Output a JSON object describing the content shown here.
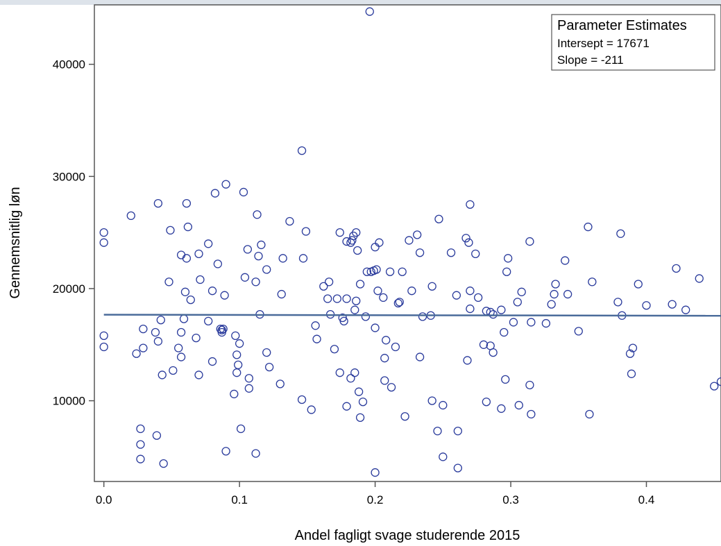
{
  "chart_data": {
    "type": "scatter",
    "title": "",
    "xlabel": "Andel fagligt svage studerende 2015",
    "ylabel": "Gennemsnitlig løn",
    "xlim": [
      -0.007,
      0.455
    ],
    "ylim": [
      2800,
      45300
    ],
    "xticks": [
      0.0,
      0.1,
      0.2,
      0.3,
      0.4
    ],
    "xtick_labels": [
      "0.0",
      "0.1",
      "0.2",
      "0.3",
      "0.4"
    ],
    "yticks": [
      10000,
      20000,
      30000,
      40000
    ],
    "ytick_labels": [
      "10000",
      "20000",
      "30000",
      "40000"
    ],
    "grid": false,
    "marker_color": "#2a3b9c",
    "line_color": "#4a6b9a",
    "legend": {
      "title": "Parameter Estimates",
      "placement": "top-right",
      "lines": [
        "Intersept = 17671",
        "Slope = -211"
      ]
    },
    "fit_line": {
      "intercept": 17671,
      "slope": -211
    },
    "points": [
      [
        0.0,
        25000
      ],
      [
        0.0,
        24100
      ],
      [
        0.0,
        15800
      ],
      [
        0.0,
        14800
      ],
      [
        0.02,
        26500
      ],
      [
        0.024,
        14200
      ],
      [
        0.027,
        7500
      ],
      [
        0.027,
        6100
      ],
      [
        0.027,
        4800
      ],
      [
        0.029,
        16400
      ],
      [
        0.029,
        14700
      ],
      [
        0.038,
        16100
      ],
      [
        0.039,
        6900
      ],
      [
        0.04,
        27600
      ],
      [
        0.04,
        15300
      ],
      [
        0.042,
        17200
      ],
      [
        0.043,
        12300
      ],
      [
        0.044,
        4400
      ],
      [
        0.048,
        20600
      ],
      [
        0.049,
        25200
      ],
      [
        0.051,
        12700
      ],
      [
        0.055,
        14700
      ],
      [
        0.057,
        23000
      ],
      [
        0.057,
        16100
      ],
      [
        0.057,
        13900
      ],
      [
        0.059,
        17300
      ],
      [
        0.06,
        19700
      ],
      [
        0.061,
        27600
      ],
      [
        0.061,
        22700
      ],
      [
        0.062,
        25500
      ],
      [
        0.064,
        19000
      ],
      [
        0.068,
        15600
      ],
      [
        0.07,
        23100
      ],
      [
        0.07,
        12300
      ],
      [
        0.071,
        20800
      ],
      [
        0.077,
        24000
      ],
      [
        0.077,
        17100
      ],
      [
        0.08,
        19800
      ],
      [
        0.08,
        13500
      ],
      [
        0.082,
        28500
      ],
      [
        0.084,
        22200
      ],
      [
        0.086,
        16400
      ],
      [
        0.087,
        16300
      ],
      [
        0.087,
        16100
      ],
      [
        0.088,
        16400
      ],
      [
        0.089,
        19400
      ],
      [
        0.09,
        29300
      ],
      [
        0.09,
        5500
      ],
      [
        0.096,
        10600
      ],
      [
        0.097,
        15800
      ],
      [
        0.098,
        14100
      ],
      [
        0.098,
        12500
      ],
      [
        0.099,
        13200
      ],
      [
        0.1,
        15100
      ],
      [
        0.101,
        7500
      ],
      [
        0.103,
        28600
      ],
      [
        0.104,
        21000
      ],
      [
        0.106,
        23500
      ],
      [
        0.107,
        11100
      ],
      [
        0.107,
        12000
      ],
      [
        0.112,
        20600
      ],
      [
        0.112,
        5300
      ],
      [
        0.113,
        26600
      ],
      [
        0.114,
        22900
      ],
      [
        0.115,
        17700
      ],
      [
        0.116,
        23900
      ],
      [
        0.12,
        21700
      ],
      [
        0.12,
        14300
      ],
      [
        0.122,
        13000
      ],
      [
        0.13,
        11500
      ],
      [
        0.131,
        19500
      ],
      [
        0.132,
        22700
      ],
      [
        0.137,
        26000
      ],
      [
        0.146,
        32300
      ],
      [
        0.146,
        10100
      ],
      [
        0.147,
        22700
      ],
      [
        0.149,
        25100
      ],
      [
        0.153,
        9200
      ],
      [
        0.156,
        16700
      ],
      [
        0.157,
        15500
      ],
      [
        0.162,
        20200
      ],
      [
        0.165,
        19100
      ],
      [
        0.166,
        20600
      ],
      [
        0.167,
        17700
      ],
      [
        0.17,
        14600
      ],
      [
        0.172,
        19100
      ],
      [
        0.174,
        25000
      ],
      [
        0.174,
        12500
      ],
      [
        0.176,
        17400
      ],
      [
        0.177,
        17100
      ],
      [
        0.179,
        24200
      ],
      [
        0.179,
        19100
      ],
      [
        0.179,
        9500
      ],
      [
        0.182,
        24100
      ],
      [
        0.182,
        12000
      ],
      [
        0.183,
        24300
      ],
      [
        0.184,
        24700
      ],
      [
        0.185,
        18100
      ],
      [
        0.185,
        12500
      ],
      [
        0.186,
        18900
      ],
      [
        0.186,
        25000
      ],
      [
        0.187,
        23400
      ],
      [
        0.188,
        10800
      ],
      [
        0.189,
        20400
      ],
      [
        0.189,
        8500
      ],
      [
        0.191,
        9900
      ],
      [
        0.193,
        17500
      ],
      [
        0.194,
        21500
      ],
      [
        0.196,
        44700
      ],
      [
        0.197,
        21500
      ],
      [
        0.199,
        21600
      ],
      [
        0.2,
        23700
      ],
      [
        0.2,
        16500
      ],
      [
        0.2,
        3600
      ],
      [
        0.201,
        21700
      ],
      [
        0.202,
        19800
      ],
      [
        0.203,
        24100
      ],
      [
        0.206,
        19200
      ],
      [
        0.207,
        11800
      ],
      [
        0.207,
        13800
      ],
      [
        0.208,
        15400
      ],
      [
        0.211,
        21500
      ],
      [
        0.212,
        11200
      ],
      [
        0.215,
        14800
      ],
      [
        0.217,
        18700
      ],
      [
        0.218,
        18800
      ],
      [
        0.22,
        21500
      ],
      [
        0.222,
        8600
      ],
      [
        0.225,
        24300
      ],
      [
        0.227,
        19800
      ],
      [
        0.231,
        24800
      ],
      [
        0.233,
        13900
      ],
      [
        0.233,
        23200
      ],
      [
        0.235,
        17500
      ],
      [
        0.241,
        17600
      ],
      [
        0.242,
        20200
      ],
      [
        0.242,
        10000
      ],
      [
        0.246,
        7300
      ],
      [
        0.247,
        26200
      ],
      [
        0.25,
        9600
      ],
      [
        0.25,
        5000
      ],
      [
        0.256,
        23200
      ],
      [
        0.26,
        19400
      ],
      [
        0.261,
        7300
      ],
      [
        0.261,
        4000
      ],
      [
        0.267,
        24500
      ],
      [
        0.268,
        13600
      ],
      [
        0.269,
        24100
      ],
      [
        0.27,
        19800
      ],
      [
        0.27,
        18200
      ],
      [
        0.27,
        27500
      ],
      [
        0.274,
        23100
      ],
      [
        0.276,
        19200
      ],
      [
        0.28,
        15000
      ],
      [
        0.282,
        18000
      ],
      [
        0.282,
        9900
      ],
      [
        0.285,
        17900
      ],
      [
        0.285,
        14900
      ],
      [
        0.287,
        14300
      ],
      [
        0.287,
        17700
      ],
      [
        0.293,
        18100
      ],
      [
        0.293,
        9300
      ],
      [
        0.295,
        16100
      ],
      [
        0.296,
        11900
      ],
      [
        0.297,
        21500
      ],
      [
        0.298,
        22700
      ],
      [
        0.302,
        17000
      ],
      [
        0.305,
        18800
      ],
      [
        0.306,
        9600
      ],
      [
        0.308,
        19700
      ],
      [
        0.314,
        11400
      ],
      [
        0.314,
        24200
      ],
      [
        0.315,
        8800
      ],
      [
        0.315,
        17000
      ],
      [
        0.326,
        16900
      ],
      [
        0.33,
        18600
      ],
      [
        0.332,
        19500
      ],
      [
        0.333,
        20400
      ],
      [
        0.34,
        22500
      ],
      [
        0.342,
        19500
      ],
      [
        0.35,
        16200
      ],
      [
        0.357,
        25500
      ],
      [
        0.358,
        8800
      ],
      [
        0.36,
        20600
      ],
      [
        0.379,
        18800
      ],
      [
        0.381,
        24900
      ],
      [
        0.382,
        17600
      ],
      [
        0.388,
        14200
      ],
      [
        0.389,
        12400
      ],
      [
        0.39,
        14700
      ],
      [
        0.394,
        20400
      ],
      [
        0.4,
        18500
      ],
      [
        0.419,
        18600
      ],
      [
        0.422,
        21800
      ],
      [
        0.429,
        18100
      ],
      [
        0.439,
        20900
      ],
      [
        0.45,
        11300
      ],
      [
        0.455,
        11700
      ]
    ]
  }
}
